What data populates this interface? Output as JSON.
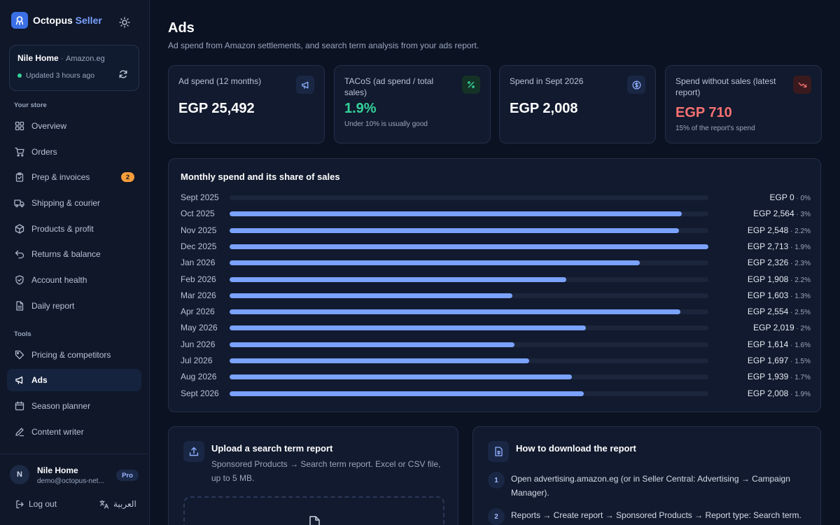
{
  "brand": {
    "name": "Octopus",
    "name_accent": "Seller"
  },
  "store": {
    "name": "Nile Home",
    "separator": "·",
    "marketplace": "Amazon.eg",
    "status": "Updated 3 hours ago"
  },
  "sidebar": {
    "section_store": "Your store",
    "section_tools": "Tools",
    "items": [
      {
        "label": "Overview",
        "icon": "grid-icon"
      },
      {
        "label": "Orders",
        "icon": "cart-icon"
      },
      {
        "label": "Prep & invoices",
        "icon": "clipboard-icon",
        "badge": "2"
      },
      {
        "label": "Shipping & courier",
        "icon": "truck-icon"
      },
      {
        "label": "Products & profit",
        "icon": "box-icon"
      },
      {
        "label": "Returns & balance",
        "icon": "return-icon"
      },
      {
        "label": "Account health",
        "icon": "shield-icon"
      },
      {
        "label": "Daily report",
        "icon": "document-icon"
      }
    ],
    "tools": [
      {
        "label": "Pricing & competitors",
        "icon": "tag-icon"
      },
      {
        "label": "Ads",
        "icon": "megaphone-icon",
        "active": true
      },
      {
        "label": "Season planner",
        "icon": "calendar-icon"
      },
      {
        "label": "Content writer",
        "icon": "pen-icon"
      }
    ]
  },
  "user": {
    "initial": "N",
    "name": "Nile Home",
    "email": "demo@octopus-net...",
    "plan": "Pro",
    "logout_label": "Log out",
    "language_label": "العربية"
  },
  "page": {
    "title": "Ads",
    "subtitle": "Ad spend from Amazon settlements, and search term analysis from your ads report."
  },
  "kpis": [
    {
      "label": "Ad spend (12 months)",
      "value": "EGP 25,492",
      "note": "",
      "icon": "megaphone-icon",
      "value_color": "#ffffff"
    },
    {
      "label": "TACoS (ad spend / total sales)",
      "value": "1.9%",
      "note": "Under 10% is usually good",
      "icon": "percent-icon",
      "value_color": "#34d399"
    },
    {
      "label": "Spend in Sept 2026",
      "value": "EGP 2,008",
      "note": "",
      "icon": "dollar-icon",
      "value_color": "#ffffff"
    },
    {
      "label": "Spend without sales (latest report)",
      "value": "EGP 710",
      "note": "15% of the report's spend",
      "icon": "trend-down-icon",
      "value_color": "#f87171"
    }
  ],
  "chart_data": {
    "type": "bar",
    "title": "Monthly spend and its share of sales",
    "categories": [
      "Sept 2025",
      "Oct 2025",
      "Nov 2025",
      "Dec 2025",
      "Jan 2026",
      "Feb 2026",
      "Mar 2026",
      "Apr 2026",
      "May 2026",
      "Jun 2026",
      "Jul 2026",
      "Aug 2026",
      "Sept 2026"
    ],
    "series": [
      {
        "values": [
          0,
          2564,
          2548,
          2713,
          2326,
          1908,
          1603,
          2554,
          2019,
          1614,
          1697,
          1939,
          2008
        ]
      }
    ],
    "value_labels": [
      "EGP 0",
      "EGP 2,564",
      "EGP 2,548",
      "EGP 2,713",
      "EGP 2,326",
      "EGP 1,908",
      "EGP 1,603",
      "EGP 2,554",
      "EGP 2,019",
      "EGP 1,614",
      "EGP 1,697",
      "EGP 1,939",
      "EGP 2,008"
    ],
    "share_labels": [
      "0%",
      "3%",
      "2.2%",
      "1.9%",
      "2.3%",
      "2.2%",
      "1.3%",
      "2.5%",
      "2%",
      "1.6%",
      "1.5%",
      "1.7%",
      "1.9%"
    ],
    "separator": " · ",
    "xlim": [
      0,
      2713
    ],
    "orientation": "horizontal",
    "grid": false
  },
  "upload": {
    "title": "Upload a search term report",
    "description": "Sponsored Products → Search term report. Excel or CSV file, up to 5 MB."
  },
  "howto": {
    "title": "How to download the report",
    "steps": [
      {
        "num": "1",
        "text": "Open advertising.amazon.eg (or in Seller Central: Advertising → Campaign Manager)."
      },
      {
        "num": "2",
        "text": "Reports → Create report → Sponsored Products → Report type: Search term."
      }
    ]
  },
  "colors": {
    "accent": "#7aa2ff",
    "success": "#34d399",
    "danger": "#f87171",
    "badge": "#f59e3b"
  }
}
